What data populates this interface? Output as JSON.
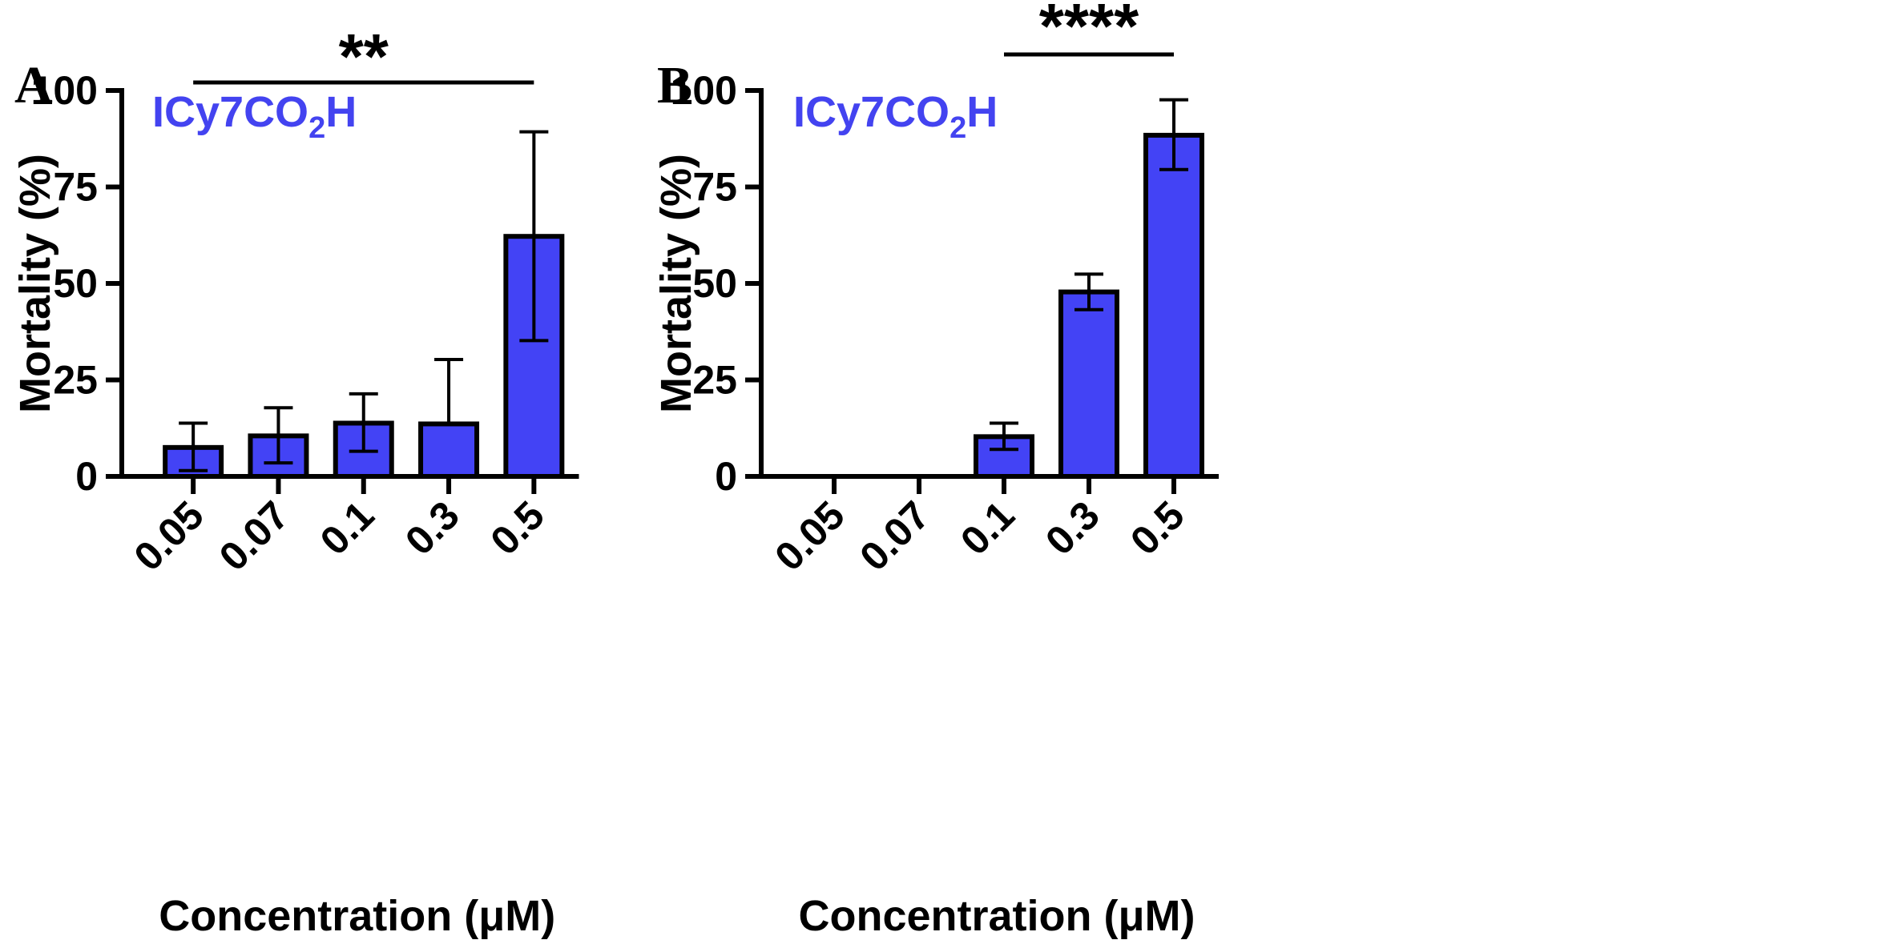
{
  "colors": {
    "bar": "#4343f5",
    "label": "#4343f0",
    "axis": "#000000"
  },
  "chart_data": [
    {
      "type": "bar",
      "panel": "A",
      "series_label": {
        "main": "ICy7CO",
        "sub": "2",
        "tail": "H"
      },
      "categories": [
        "0.05",
        "0.07",
        "0.1",
        "0.3",
        "0.5"
      ],
      "values": [
        7.5,
        10.5,
        13.8,
        13.6,
        62.2
      ],
      "error_low": [
        1.5,
        3.5,
        6.5,
        13.6,
        35.2
      ],
      "error_high": [
        13.8,
        17.8,
        21.4,
        30.3,
        89.3
      ],
      "xlabel": "Concentration (μM)",
      "ylabel": "Mortality (%)",
      "ylim": [
        0,
        100
      ],
      "yticks": [
        "0",
        "25",
        "50",
        "75",
        "100"
      ],
      "significance": {
        "text": "**",
        "from": "0.05",
        "to": "0.5"
      }
    },
    {
      "type": "bar",
      "panel": "B",
      "series_label": {
        "main": "ICy7CO",
        "sub": "2",
        "tail": "H"
      },
      "categories": [
        "0.05",
        "0.07",
        "0.1",
        "0.3",
        "0.5"
      ],
      "values": [
        0,
        0,
        10.3,
        47.8,
        88.4
      ],
      "error_low": [
        0,
        0,
        7.0,
        43.2,
        79.5
      ],
      "error_high": [
        0,
        0,
        13.8,
        52.4,
        97.6
      ],
      "xlabel": "Concentration (μM)",
      "ylabel": "Mortality (%)",
      "ylim": [
        0,
        100
      ],
      "yticks": [
        "0",
        "25",
        "50",
        "75",
        "100"
      ],
      "significance": {
        "text": "****",
        "from": "0.1",
        "to": "0.5"
      }
    }
  ]
}
